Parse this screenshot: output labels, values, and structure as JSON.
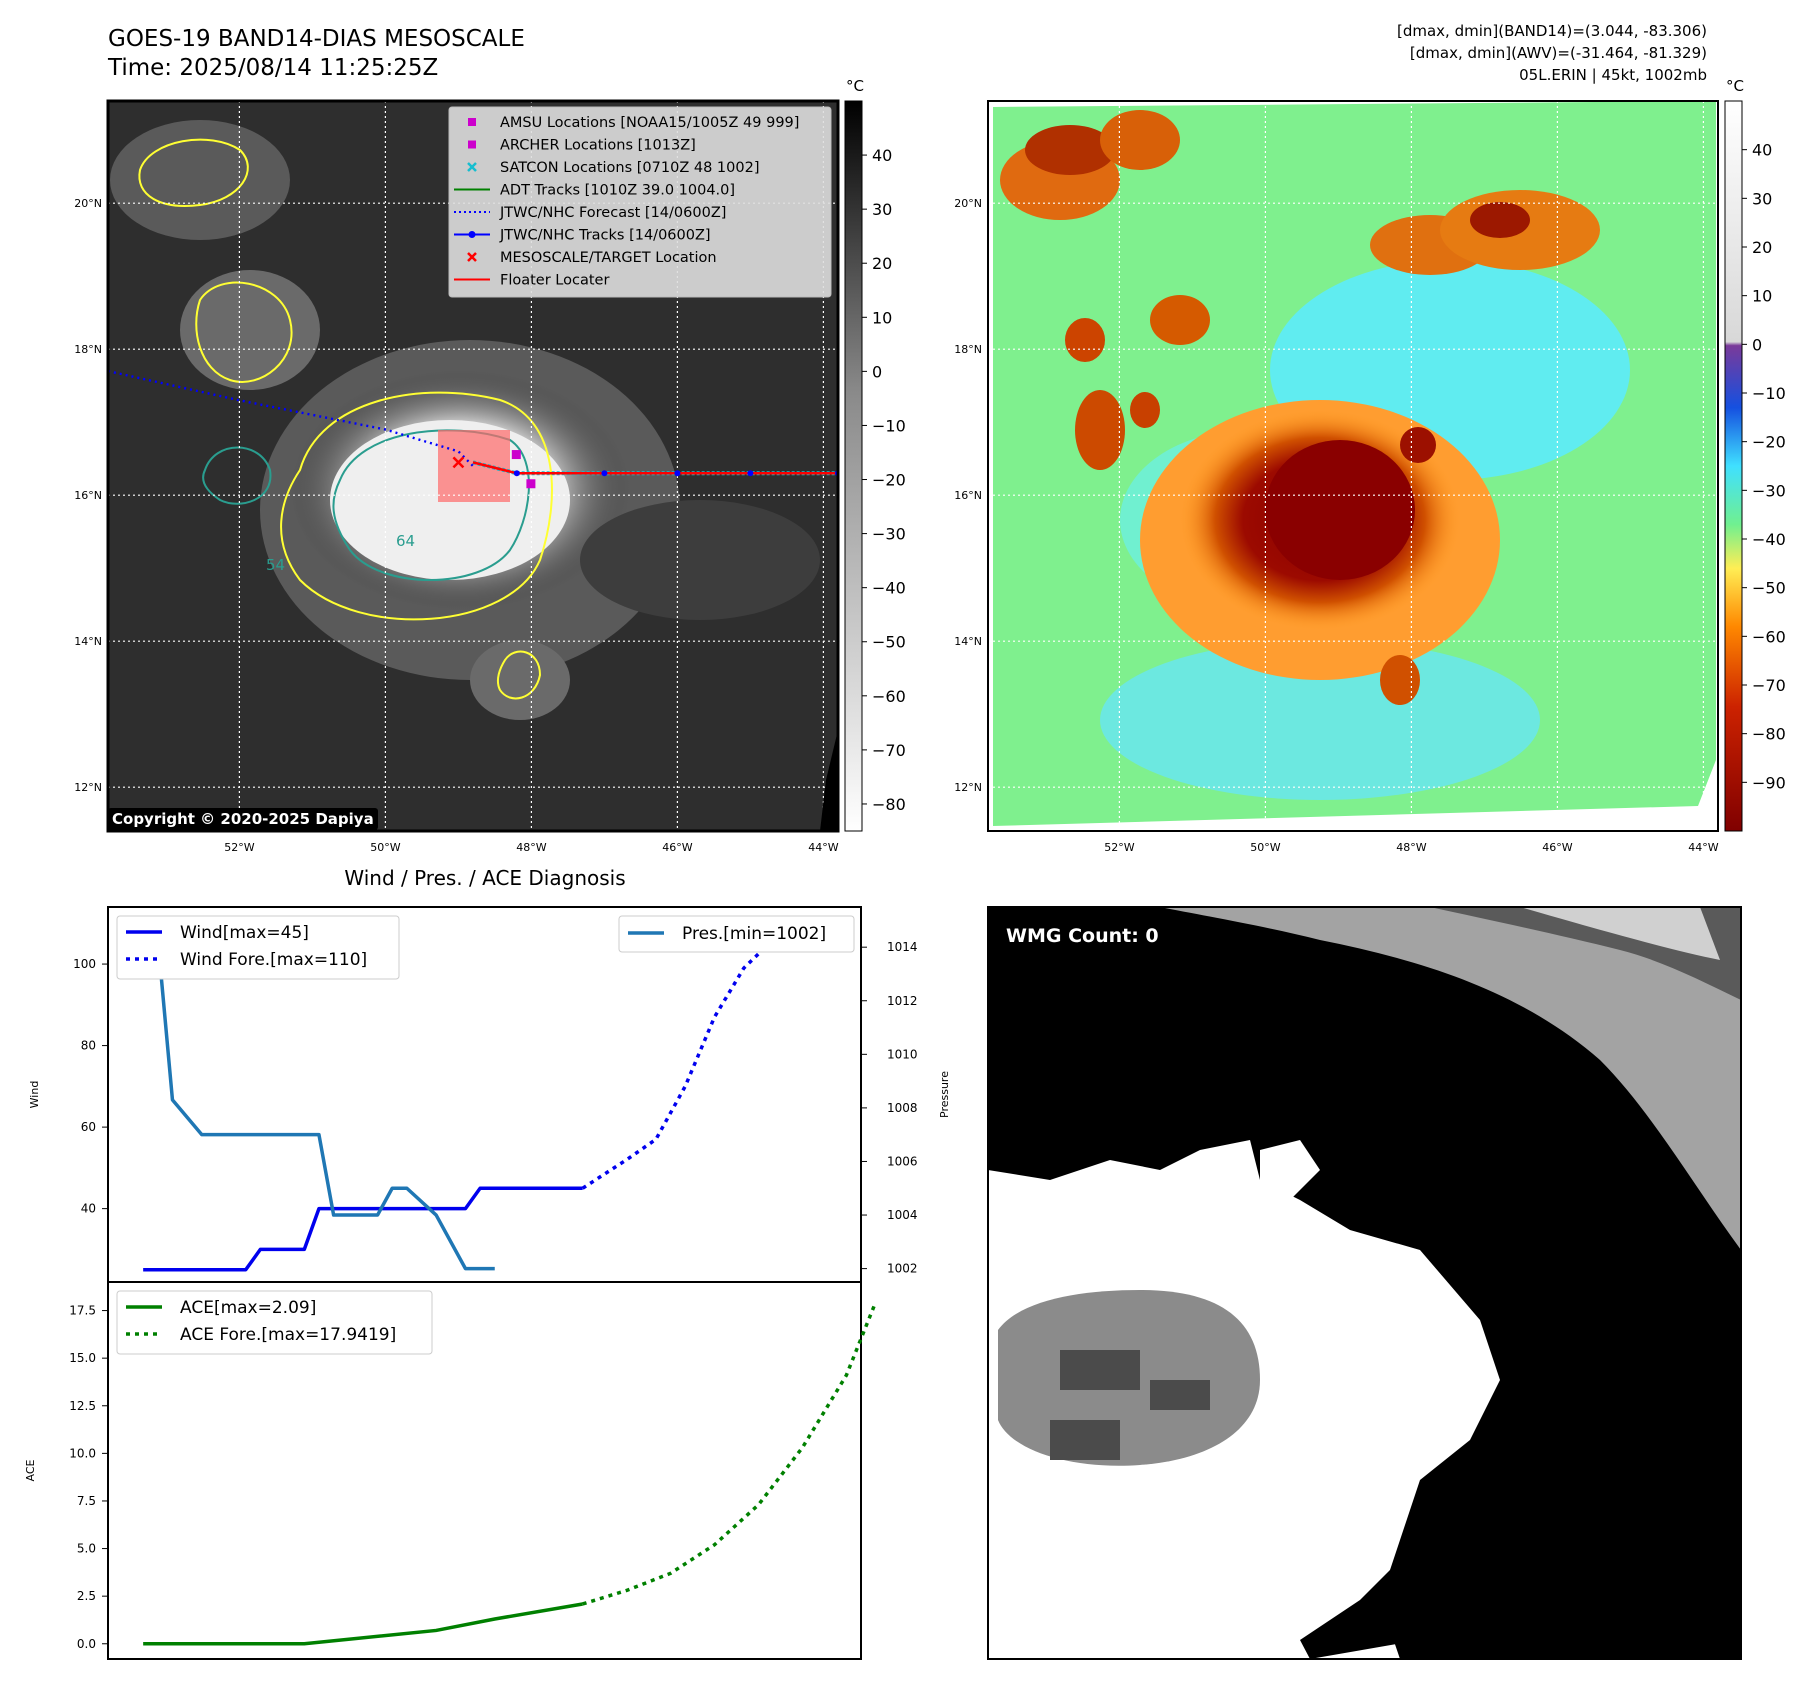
{
  "header": {
    "title_line1": "GOES-19 BAND14-DIAS MESOSCALE",
    "title_line2": "Time: 2025/08/14 11:25:25Z",
    "info_line1": "[dmax, dmin](BAND14)=(3.044, -83.306)",
    "info_line2": "[dmax, dmin](AWV)=(-31.464, -81.329)",
    "info_line3": "05L.ERIN | 45kt, 1002mb"
  },
  "copyright": "Copyright © 2020-2025 Dapiya",
  "colors": {
    "wind": "#0000ee",
    "pressure": "#1f77b4",
    "ace": "#008000",
    "track_red": "#ff0000",
    "forecast_blue": "#0000ff",
    "magenta": "#cc00cc",
    "cyan": "#17becf",
    "contour_yellow": "#ffff33",
    "contour_teal": "#2a9d8f"
  },
  "map": {
    "lat_labels": [
      "20°N",
      "18°N",
      "16°N",
      "14°N",
      "12°N"
    ],
    "lat_values": [
      20,
      18,
      16,
      14,
      12
    ],
    "lon_labels": [
      "52°W",
      "50°W",
      "48°W",
      "46°W",
      "44°W"
    ],
    "lon_values": [
      -52,
      -50,
      -48,
      -46,
      -44
    ],
    "lon_range": [
      -53.8,
      -43.8
    ],
    "lat_range": [
      11.4,
      21.4
    ],
    "legend": [
      {
        "label": "AMSU Locations [NOAA15/1005Z 49 999]",
        "marker": "square",
        "color": "#cc00cc"
      },
      {
        "label": "ARCHER Locations [1013Z]",
        "marker": "square",
        "color": "#cc00cc"
      },
      {
        "label": "SATCON Locations [0710Z 48 1002]",
        "marker": "x",
        "color": "#17becf"
      },
      {
        "label": "ADT Tracks [1010Z 39.0 1004.0]",
        "marker": "line",
        "color": "#008000"
      },
      {
        "label": "JTWC/NHC Forecast [14/0600Z]",
        "marker": "dotted",
        "color": "#0000ff"
      },
      {
        "label": "JTWC/NHC Tracks [14/0600Z]",
        "marker": "line-dot",
        "color": "#0000ff"
      },
      {
        "label": "MESOSCALE/TARGET Location",
        "marker": "x",
        "color": "#ff0000"
      },
      {
        "label": "Floater Locater",
        "marker": "line",
        "color": "#ff0000"
      }
    ],
    "contour_labels": [
      "64",
      "54"
    ],
    "forecast_track": [
      [
        -53.8,
        17.7
      ],
      [
        -52,
        17.3
      ],
      [
        -50,
        16.9
      ],
      [
        -49,
        16.6
      ],
      [
        -48.8,
        16.4
      ]
    ],
    "observed_track": [
      [
        -48.8,
        16.45
      ],
      [
        -48.2,
        16.3
      ],
      [
        -47,
        16.3
      ],
      [
        -46,
        16.3
      ],
      [
        -45,
        16.3
      ],
      [
        -43.8,
        16.3
      ]
    ]
  },
  "colorbar_left": {
    "unit": "°C",
    "ticks": [
      "40",
      "30",
      "20",
      "10",
      "0",
      "−10",
      "−20",
      "−30",
      "−40",
      "−50",
      "−60",
      "−70",
      "−80"
    ],
    "range": [
      -85,
      50
    ]
  },
  "colorbar_right": {
    "unit": "°C",
    "ticks": [
      "40",
      "30",
      "20",
      "10",
      "0",
      "−10",
      "−20",
      "−30",
      "−40",
      "−50",
      "−60",
      "−70",
      "−80",
      "−90"
    ],
    "range": [
      -100,
      50
    ]
  },
  "diagnosis_title": "Wind / Pres. / ACE Diagnosis",
  "chart_data": [
    {
      "type": "line",
      "title": "Wind / Pres. / ACE Diagnosis",
      "ylabel": "Wind",
      "y2label": "Pressure",
      "ylim": [
        22,
        114
      ],
      "y2lim": [
        1001.5,
        1015.5
      ],
      "yticks": [
        "40",
        "60",
        "80",
        "100"
      ],
      "y2ticks": [
        "1002",
        "1004",
        "1006",
        "1008",
        "1010",
        "1012",
        "1014"
      ],
      "series": [
        {
          "name": "Wind[max=45]",
          "style": "solid",
          "axis": "left",
          "x": [
            0,
            3.5,
            4,
            5.5,
            6,
            9,
            10,
            11,
            11.5,
            12.5,
            13,
            15
          ],
          "y": [
            25,
            25,
            30,
            30,
            40,
            40,
            40,
            40,
            45,
            45,
            45,
            45
          ]
        },
        {
          "name": "Wind Fore.[max=110]",
          "style": "dotted",
          "axis": "left",
          "x": [
            15,
            16.5,
            17.5,
            18.5,
            19.5,
            20.5,
            21.5,
            22.5,
            23.5
          ],
          "y": [
            45,
            52,
            57,
            70,
            87,
            99,
            106,
            107,
            108
          ]
        },
        {
          "name": "Pres.[min=1002]",
          "style": "solid",
          "axis": "right",
          "x": [
            0,
            0.5,
            1,
            2,
            3,
            4.5,
            6,
            6.5,
            7,
            8,
            8.5,
            9,
            10,
            11,
            12
          ],
          "y": [
            1014.3,
            1014.3,
            1008.3,
            1007.0,
            1007.0,
            1007.0,
            1007.0,
            1004.0,
            1004.0,
            1004.0,
            1005.0,
            1005.0,
            1004.0,
            1002.0,
            1002.0
          ]
        }
      ]
    },
    {
      "type": "line",
      "ylabel": "ACE",
      "ylim": [
        -0.8,
        19
      ],
      "yticks": [
        "0.0",
        "2.5",
        "5.0",
        "7.5",
        "10.0",
        "12.5",
        "15.0",
        "17.5"
      ],
      "series": [
        {
          "name": "ACE[max=2.09]",
          "style": "solid",
          "x": [
            0,
            5.5,
            10,
            12,
            15
          ],
          "y": [
            0,
            0,
            0.7,
            1.3,
            2.09
          ]
        },
        {
          "name": "ACE Fore.[max=17.9419]",
          "style": "dotted",
          "x": [
            15,
            16.5,
            18,
            19.5,
            21,
            22.5,
            24,
            25
          ],
          "y": [
            2.09,
            2.8,
            3.7,
            5.2,
            7.3,
            10.3,
            14.1,
            17.94
          ]
        }
      ]
    }
  ],
  "wmg": {
    "label": "WMG Count: 0"
  }
}
